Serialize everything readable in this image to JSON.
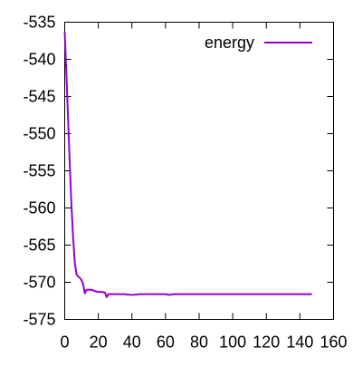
{
  "chart_data": {
    "type": "line",
    "title": "",
    "xlabel": "",
    "ylabel": "",
    "xlim": [
      0,
      160
    ],
    "ylim": [
      -575,
      -535
    ],
    "xticks": [
      0,
      20,
      40,
      60,
      80,
      100,
      120,
      140,
      160
    ],
    "yticks": [
      -535,
      -540,
      -545,
      -550,
      -555,
      -560,
      -565,
      -570,
      -575
    ],
    "xtick_labels": [
      "0",
      "20",
      "40",
      "60",
      "80",
      "100",
      "120",
      "140",
      "160"
    ],
    "ytick_labels": [
      "-535",
      "-540",
      "-545",
      "-550",
      "-555",
      "-560",
      "-565",
      "-570",
      "-575"
    ],
    "grid": false,
    "legend_position": "top-right",
    "series": [
      {
        "name": "energy",
        "color": "#9400d3",
        "x": [
          0,
          1,
          2,
          3,
          4,
          5,
          6,
          7,
          8,
          9,
          10,
          11,
          12,
          13,
          14,
          16,
          18,
          20,
          22,
          24,
          25,
          26,
          28,
          30,
          35,
          40,
          45,
          50,
          55,
          60,
          62,
          65,
          70,
          80,
          90,
          100,
          110,
          120,
          130,
          140,
          147
        ],
        "y": [
          -536.3,
          -542.0,
          -548.0,
          -554.0,
          -559.5,
          -564.0,
          -567.3,
          -568.9,
          -569.2,
          -569.4,
          -569.7,
          -570.3,
          -571.5,
          -571.0,
          -571.0,
          -571.0,
          -571.2,
          -571.3,
          -571.3,
          -571.4,
          -572.0,
          -571.6,
          -571.6,
          -571.6,
          -571.6,
          -571.7,
          -571.6,
          -571.6,
          -571.6,
          -571.6,
          -571.7,
          -571.6,
          -571.6,
          -571.6,
          -571.6,
          -571.6,
          -571.6,
          -571.6,
          -571.6,
          -571.6,
          -571.6
        ]
      }
    ]
  }
}
